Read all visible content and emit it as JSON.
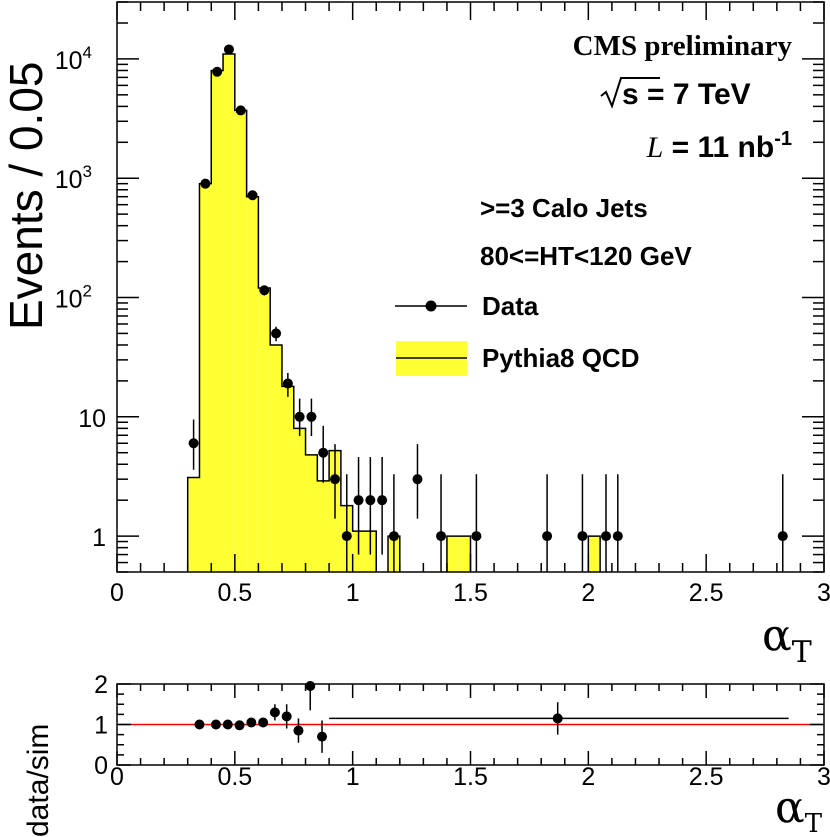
{
  "chart_data": [
    {
      "type": "histogram",
      "ylabel": "Events / 0.05",
      "xlabel": "α",
      "xlabel_sub": "T",
      "xlim": [
        0,
        3
      ],
      "ylim": [
        0.5,
        30000
      ],
      "yscale": "log",
      "x_ticks": [
        "0",
        "0.5",
        "1",
        "1.5",
        "2",
        "2.5",
        "3"
      ],
      "y_ticks": [
        {
          "value": 1,
          "label": "1"
        },
        {
          "value": 10,
          "label": "10"
        },
        {
          "value": 100,
          "label": "10",
          "sup": "2"
        },
        {
          "value": 1000,
          "label": "10",
          "sup": "3"
        },
        {
          "value": 10000,
          "label": "10",
          "sup": "4"
        }
      ],
      "annotations": {
        "cms": "CMS preliminary",
        "energy": "s = 7 TeV",
        "lumi_prefix": "L",
        "lumi_value": " = 11 nb",
        "lumi_sup": "-1",
        "selection1": ">=3 Calo Jets",
        "selection2": "80<=HT<120 GeV"
      },
      "legend": [
        {
          "label": "Data",
          "style": "marker"
        },
        {
          "label": "Pythia8 QCD",
          "style": "fill"
        }
      ],
      "legend_position": "top-right",
      "fill_color": "#ffff33",
      "bin_width": 0.05,
      "mc_bins": [
        {
          "x": 0.3,
          "y": 3.1
        },
        {
          "x": 0.35,
          "y": 900
        },
        {
          "x": 0.4,
          "y": 8000
        },
        {
          "x": 0.45,
          "y": 11000
        },
        {
          "x": 0.5,
          "y": 3700
        },
        {
          "x": 0.55,
          "y": 700
        },
        {
          "x": 0.6,
          "y": 120
        },
        {
          "x": 0.65,
          "y": 40
        },
        {
          "x": 0.7,
          "y": 18
        },
        {
          "x": 0.75,
          "y": 8
        },
        {
          "x": 0.8,
          "y": 4.8
        },
        {
          "x": 0.85,
          "y": 2.9
        },
        {
          "x": 0.9,
          "y": 5.2
        },
        {
          "x": 0.95,
          "y": 1.8
        },
        {
          "x": 1.0,
          "y": 1.1
        },
        {
          "x": 1.05,
          "y": 1.1
        },
        {
          "x": 1.15,
          "y": 1.0
        },
        {
          "x": 1.4,
          "y": 1.0
        },
        {
          "x": 1.45,
          "y": 1.0
        },
        {
          "x": 2.0,
          "y": 1.0
        }
      ],
      "data_points": [
        {
          "x": 0.325,
          "y": 6,
          "err": [
            2.4,
            3.5
          ]
        },
        {
          "x": 0.375,
          "y": 900,
          "err": [
            30,
            30
          ]
        },
        {
          "x": 0.425,
          "y": 7800,
          "err": [
            90,
            90
          ]
        },
        {
          "x": 0.475,
          "y": 12000,
          "err": [
            110,
            110
          ]
        },
        {
          "x": 0.525,
          "y": 3700,
          "err": [
            60,
            60
          ]
        },
        {
          "x": 0.575,
          "y": 720,
          "err": [
            27,
            27
          ]
        },
        {
          "x": 0.625,
          "y": 115,
          "err": [
            11,
            11
          ]
        },
        {
          "x": 0.675,
          "y": 50,
          "err": [
            7,
            7
          ]
        },
        {
          "x": 0.725,
          "y": 19,
          "err": [
            4.3,
            4.3
          ]
        },
        {
          "x": 0.775,
          "y": 10,
          "err": [
            3.1,
            4.2
          ]
        },
        {
          "x": 0.825,
          "y": 10,
          "err": [
            3.1,
            4.2
          ]
        },
        {
          "x": 0.875,
          "y": 5,
          "err": [
            2.2,
            3.4
          ]
        },
        {
          "x": 0.925,
          "y": 3,
          "err": [
            1.6,
            2.9
          ]
        },
        {
          "x": 0.975,
          "y": 1,
          "err": [
            0.83,
            2.3
          ]
        },
        {
          "x": 1.025,
          "y": 2,
          "err": [
            1.3,
            2.6
          ]
        },
        {
          "x": 1.075,
          "y": 2,
          "err": [
            1.3,
            2.6
          ]
        },
        {
          "x": 1.125,
          "y": 2,
          "err": [
            1.3,
            2.6
          ]
        },
        {
          "x": 1.175,
          "y": 1,
          "err": [
            0.83,
            2.3
          ]
        },
        {
          "x": 1.275,
          "y": 3,
          "err": [
            1.6,
            2.9
          ]
        },
        {
          "x": 1.375,
          "y": 1,
          "err": [
            0.83,
            2.3
          ]
        },
        {
          "x": 1.525,
          "y": 1,
          "err": [
            0.83,
            2.3
          ]
        },
        {
          "x": 1.825,
          "y": 1,
          "err": [
            0.83,
            2.3
          ]
        },
        {
          "x": 1.975,
          "y": 1,
          "err": [
            0.83,
            2.3
          ]
        },
        {
          "x": 2.075,
          "y": 1,
          "err": [
            0.83,
            2.3
          ]
        },
        {
          "x": 2.125,
          "y": 1,
          "err": [
            0.83,
            2.3
          ]
        },
        {
          "x": 2.825,
          "y": 1,
          "err": [
            0.83,
            2.3
          ]
        }
      ]
    },
    {
      "type": "scatter",
      "ylabel": "data/sim",
      "xlabel": "α",
      "xlabel_sub": "T",
      "xlim": [
        0,
        3
      ],
      "ylim": [
        0,
        2
      ],
      "x_ticks": [
        "0",
        "0.5",
        "1",
        "1.5",
        "2",
        "2.5",
        "3"
      ],
      "y_ticks": [
        "0",
        "1",
        "2"
      ],
      "reference_line": {
        "y": 1,
        "color": "#ff0000"
      },
      "points": [
        {
          "x": 0.35,
          "y": 1.0,
          "yerr": 0.03
        },
        {
          "x": 0.42,
          "y": 1.0,
          "yerr": 0.02
        },
        {
          "x": 0.47,
          "y": 1.0,
          "yerr": 0.02
        },
        {
          "x": 0.52,
          "y": 0.98,
          "yerr": 0.03
        },
        {
          "x": 0.57,
          "y": 1.05,
          "yerr": 0.05
        },
        {
          "x": 0.62,
          "y": 1.05,
          "yerr": 0.1
        },
        {
          "x": 0.67,
          "y": 1.3,
          "yerr": 0.2
        },
        {
          "x": 0.72,
          "y": 1.2,
          "yerr": 0.3
        },
        {
          "x": 0.77,
          "y": 0.85,
          "yerr": 0.3
        },
        {
          "x": 0.82,
          "y": 1.95,
          "yerr": 0.6
        },
        {
          "x": 0.87,
          "y": 0.7,
          "yerr": 0.4
        },
        {
          "x": 1.87,
          "y": 1.15,
          "yerr": 0.4,
          "xerr": [
            0.97,
            0.98
          ]
        }
      ]
    }
  ]
}
